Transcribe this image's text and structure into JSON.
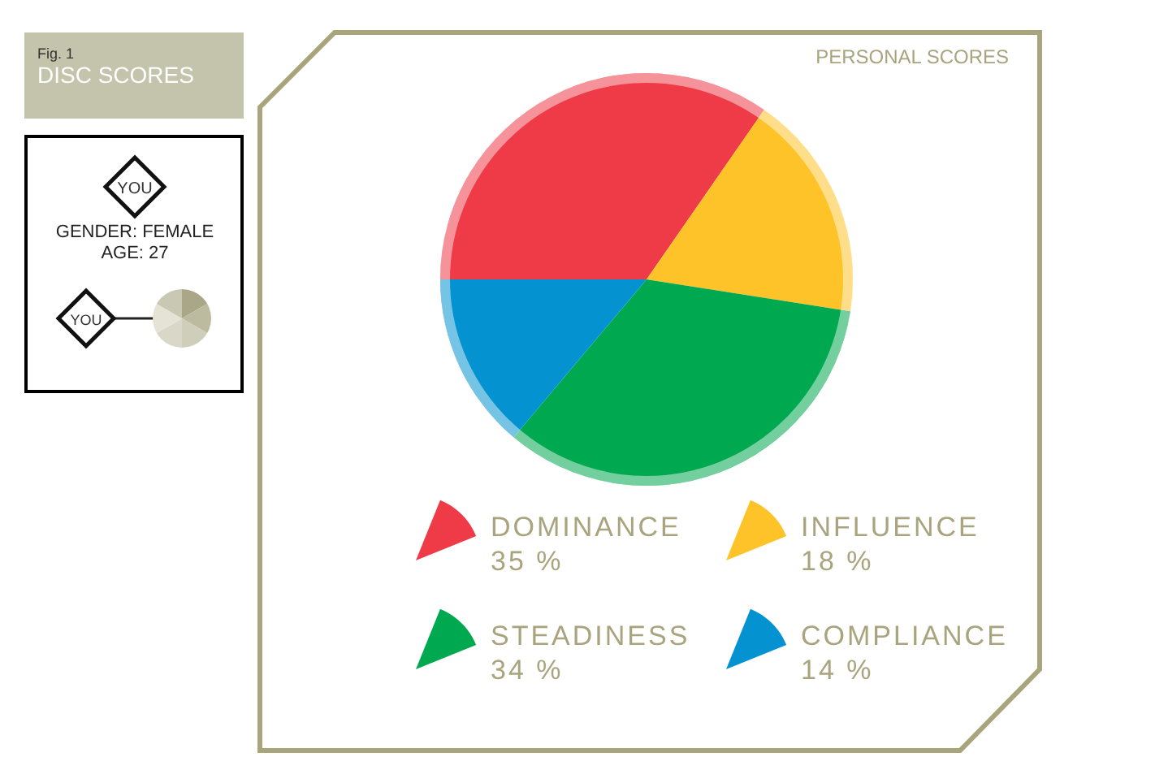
{
  "chart_data": {
    "type": "pie",
    "title": "DISC SCORES",
    "subtitle": "PERSONAL SCORES",
    "categories": [
      "DOMINANCE",
      "INFLUENCE",
      "STEADINESS",
      "COMPLIANCE"
    ],
    "values": [
      35,
      18,
      34,
      14
    ],
    "colors": [
      "#ef3b47",
      "#ffc32a",
      "#00a84f",
      "#0592d0"
    ],
    "value_labels": [
      "35 %",
      "18 %",
      "34 %",
      "14 %"
    ],
    "legend": "bottom",
    "annotations": [
      "Fig. 1",
      "YOU",
      "GENDER: FEMALE",
      "AGE: 27",
      "YOU"
    ]
  }
}
